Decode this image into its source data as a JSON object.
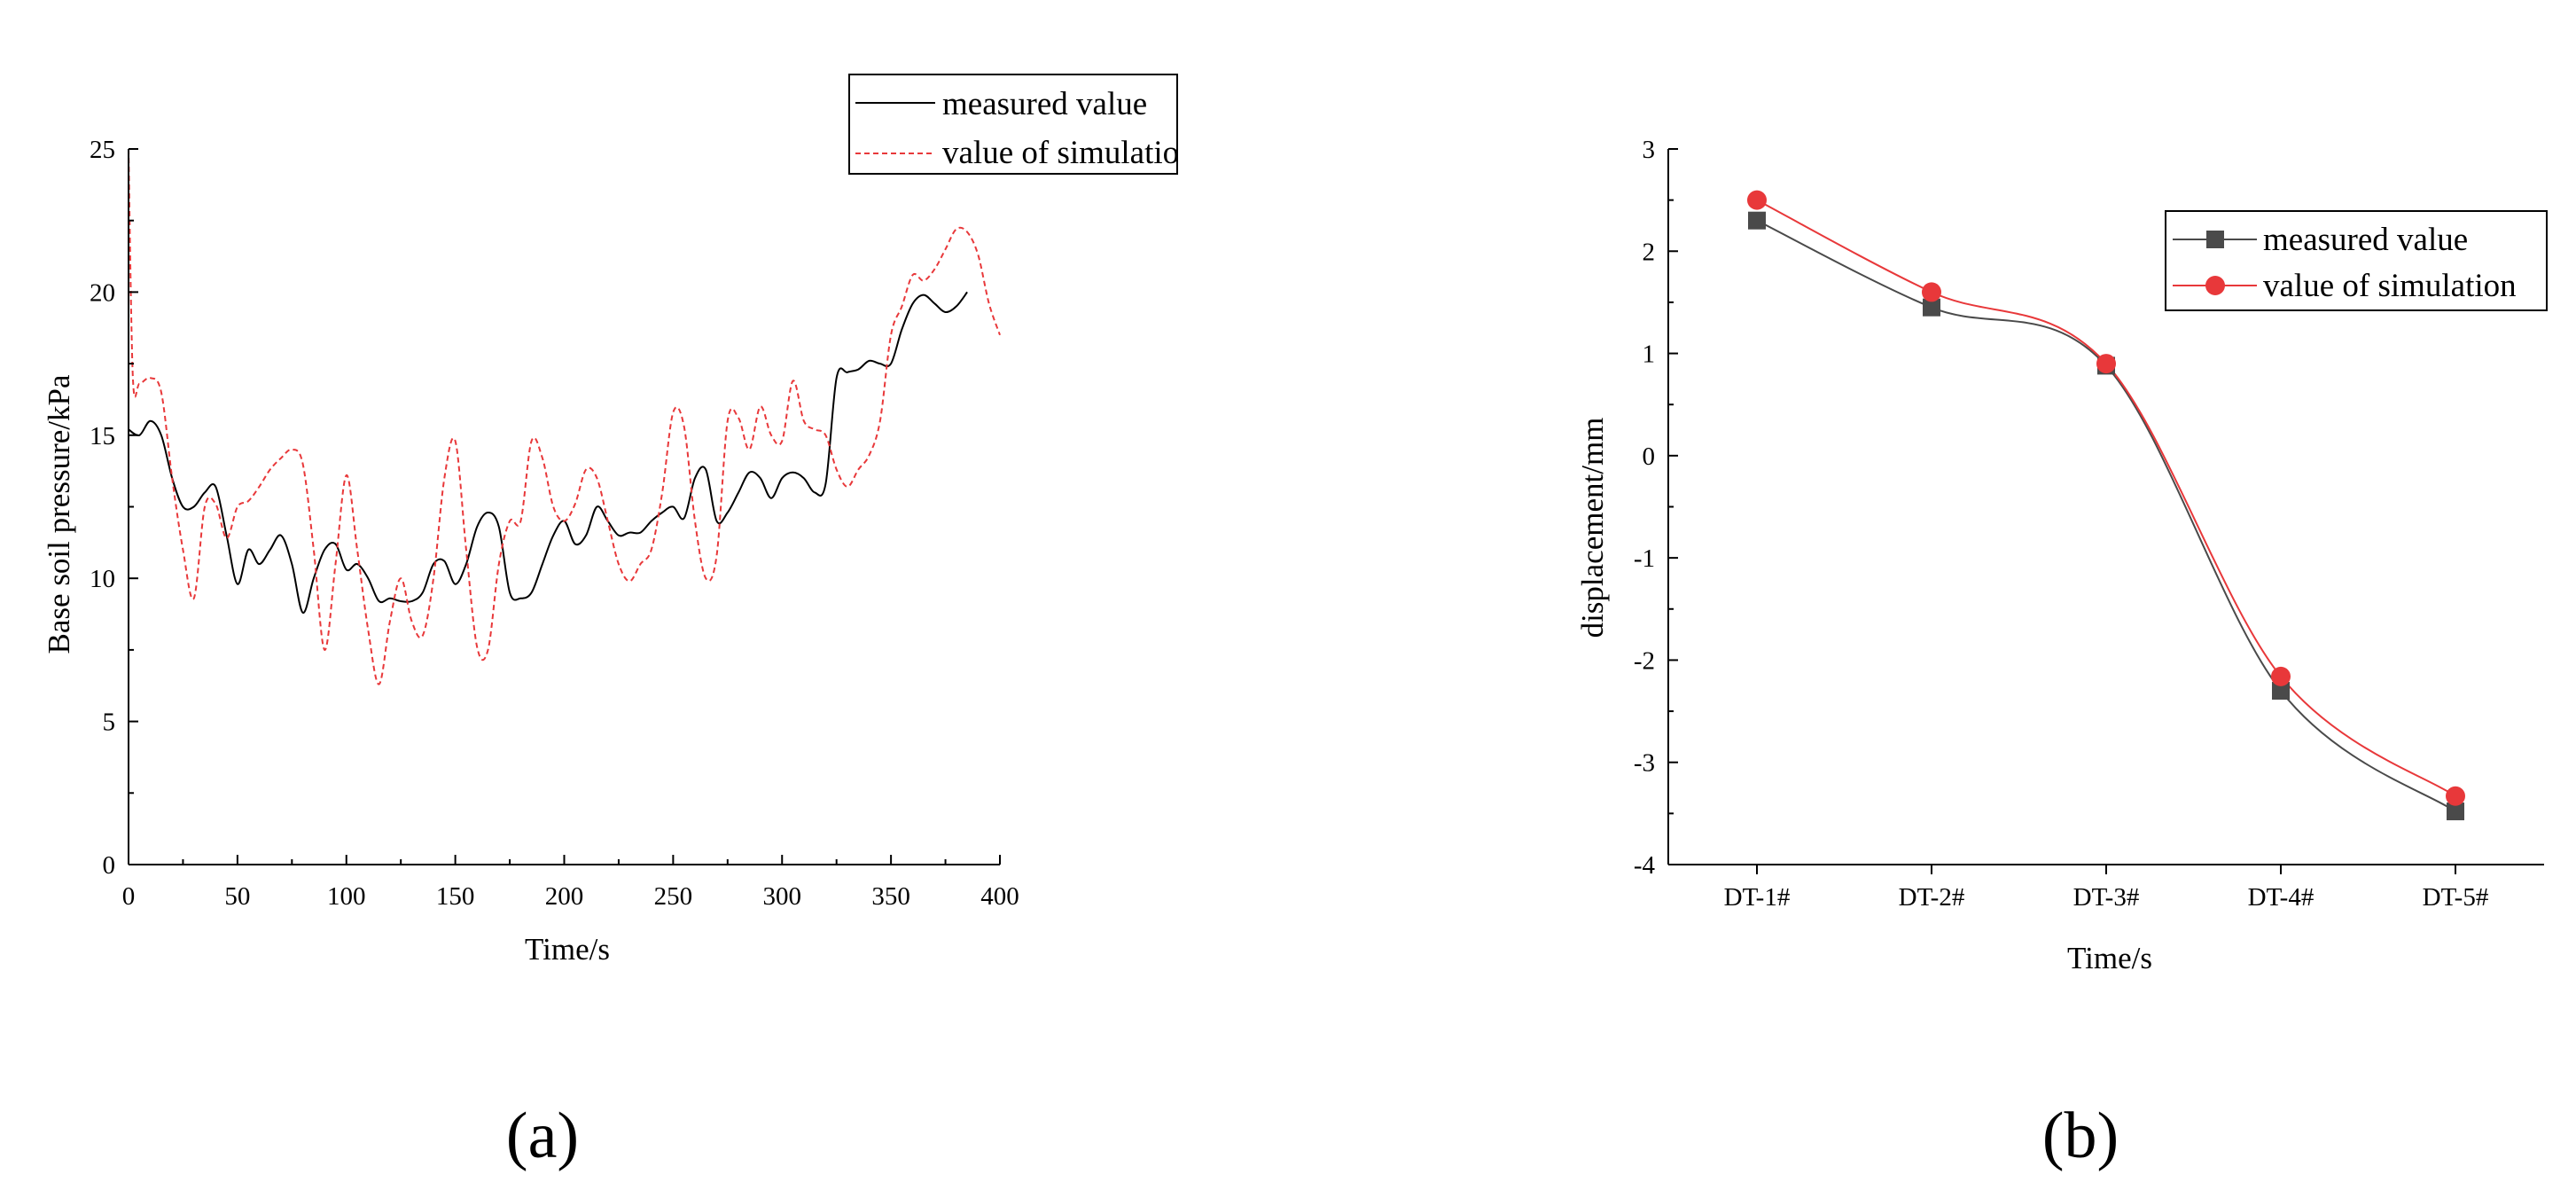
{
  "panels": [
    "(a)",
    "(b)"
  ],
  "chart_data": [
    {
      "type": "line",
      "title": "",
      "xlabel": "Time/s",
      "ylabel": "Base soil pressure/kPa",
      "xlim": [
        0,
        400
      ],
      "ylim": [
        0,
        25
      ],
      "xticks": [
        0,
        50,
        100,
        150,
        200,
        250,
        300,
        350,
        400
      ],
      "yticks": [
        0,
        5,
        10,
        15,
        20,
        25
      ],
      "grid": false,
      "legend_position": "top-right",
      "series": [
        {
          "name": "measured value",
          "color": "#000000",
          "style": "solid",
          "x": [
            0,
            5,
            10,
            15,
            20,
            25,
            30,
            35,
            40,
            45,
            50,
            55,
            60,
            65,
            70,
            75,
            80,
            85,
            90,
            95,
            100,
            105,
            110,
            115,
            120,
            125,
            130,
            135,
            140,
            145,
            150,
            155,
            160,
            165,
            170,
            175,
            180,
            185,
            190,
            195,
            200,
            205,
            210,
            215,
            220,
            225,
            230,
            235,
            240,
            245,
            250,
            255,
            260,
            265,
            270,
            275,
            280,
            285,
            290,
            295,
            300,
            305,
            310,
            315,
            320,
            325,
            330,
            335,
            340,
            345,
            350,
            355,
            360,
            365,
            370,
            375,
            380,
            385
          ],
          "values": [
            15.2,
            15.0,
            15.5,
            15.0,
            13.5,
            12.5,
            12.5,
            13.0,
            13.2,
            11.5,
            9.8,
            11.0,
            10.5,
            11.0,
            11.5,
            10.5,
            8.8,
            10.0,
            11.0,
            11.2,
            10.3,
            10.5,
            10.0,
            9.2,
            9.3,
            9.2,
            9.2,
            9.5,
            10.5,
            10.6,
            9.8,
            10.5,
            11.8,
            12.3,
            11.8,
            9.5,
            9.3,
            9.5,
            10.5,
            11.5,
            12.0,
            11.2,
            11.5,
            12.5,
            12.0,
            11.5,
            11.6,
            11.6,
            12.0,
            12.3,
            12.5,
            12.1,
            13.5,
            13.8,
            12.0,
            12.3,
            13.0,
            13.7,
            13.5,
            12.8,
            13.5,
            13.7,
            13.5,
            13.0,
            13.3,
            17.0,
            17.2,
            17.3,
            17.6,
            17.5,
            17.5,
            18.7,
            19.6,
            19.9,
            19.6,
            19.3,
            19.5,
            20.0
          ]
        },
        {
          "name": "value of simulation",
          "color": "#e8383a",
          "style": "dashed",
          "x": [
            0,
            2,
            5,
            10,
            15,
            20,
            25,
            30,
            35,
            40,
            45,
            50,
            55,
            60,
            65,
            70,
            75,
            80,
            85,
            90,
            95,
            100,
            105,
            110,
            115,
            120,
            125,
            130,
            135,
            140,
            145,
            150,
            155,
            160,
            165,
            170,
            175,
            180,
            185,
            190,
            195,
            200,
            205,
            210,
            215,
            220,
            225,
            230,
            235,
            240,
            245,
            250,
            255,
            260,
            265,
            270,
            275,
            280,
            285,
            290,
            295,
            300,
            305,
            310,
            315,
            320,
            325,
            330,
            335,
            340,
            345,
            350,
            355,
            360,
            365,
            370,
            375,
            380,
            385,
            390,
            395,
            400
          ],
          "values": [
            25.0,
            17.0,
            16.8,
            17.0,
            16.5,
            13.5,
            11.0,
            9.3,
            12.5,
            12.6,
            11.4,
            12.5,
            12.7,
            13.2,
            13.8,
            14.2,
            14.5,
            14.0,
            11.0,
            7.5,
            10.5,
            13.6,
            11.0,
            8.2,
            6.3,
            8.5,
            10.0,
            8.5,
            8.0,
            10.0,
            13.5,
            14.8,
            11.0,
            7.6,
            7.5,
            10.5,
            12.0,
            12.0,
            14.8,
            14.2,
            12.5,
            12.0,
            12.6,
            13.8,
            13.5,
            12.0,
            10.5,
            9.9,
            10.5,
            11.0,
            13.0,
            15.8,
            15.3,
            12.0,
            10.0,
            10.8,
            15.5,
            15.6,
            14.5,
            16.0,
            15.0,
            14.8,
            16.9,
            15.5,
            15.2,
            15.0,
            13.8,
            13.2,
            13.8,
            14.3,
            15.5,
            18.5,
            19.5,
            20.6,
            20.4,
            20.8,
            21.5,
            22.2,
            22.1,
            21.3,
            19.6,
            18.5
          ]
        }
      ]
    },
    {
      "type": "line",
      "title": "",
      "xlabel": "Time/s",
      "ylabel": "displacement/mm",
      "categories": [
        "DT-1#",
        "DT-2#",
        "DT-3#",
        "DT-4#",
        "DT-5#"
      ],
      "ylim": [
        -4,
        3
      ],
      "yticks": [
        -4,
        -3,
        -2,
        -1,
        0,
        1,
        2,
        3
      ],
      "grid": false,
      "legend_position": "top-right",
      "series": [
        {
          "name": "measured value",
          "color": "#4a4a4a",
          "marker": "square",
          "values": [
            2.3,
            1.45,
            0.88,
            -2.3,
            -3.48
          ]
        },
        {
          "name": "value of simulation",
          "color": "#e8383a",
          "marker": "circle",
          "values": [
            2.5,
            1.6,
            0.9,
            -2.16,
            -3.33
          ]
        }
      ]
    }
  ]
}
